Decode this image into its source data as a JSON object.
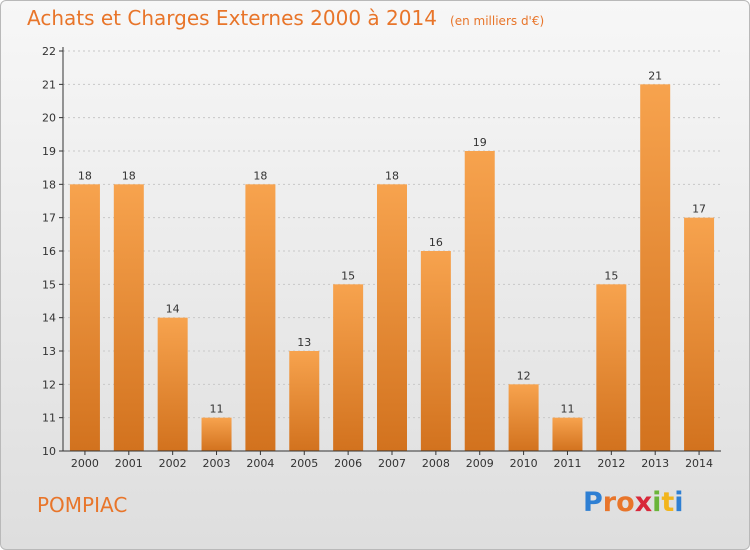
{
  "header": {
    "title": "Achats et Charges Externes 2000 à 2014",
    "subtitle": "(en milliers d'€)"
  },
  "footer": {
    "commune": "POMPIAC",
    "logo_text": "Proxiti",
    "logo_letters": [
      "P",
      "r",
      "o",
      "x",
      "i",
      "t",
      "i"
    ]
  },
  "colors": {
    "bar_light": "#f7a34e",
    "bar_dark": "#d2721e",
    "title": "#e8752a",
    "axis": "#333333",
    "grid": "#c8c8c8"
  },
  "chart_data": {
    "type": "bar",
    "title": "Achats et Charges Externes 2000 à 2014",
    "subtitle": "(en milliers d'€)",
    "categories": [
      "2000",
      "2001",
      "2002",
      "2003",
      "2004",
      "2005",
      "2006",
      "2007",
      "2008",
      "2009",
      "2010",
      "2011",
      "2012",
      "2013",
      "2014"
    ],
    "values": [
      18,
      18,
      14,
      11,
      18,
      13,
      15,
      18,
      16,
      19,
      12,
      11,
      15,
      21,
      17
    ],
    "ylim": [
      10,
      22
    ],
    "yticks": [
      10,
      11,
      12,
      13,
      14,
      15,
      16,
      17,
      18,
      19,
      20,
      21,
      22
    ],
    "grid": true,
    "show_value_labels": true
  }
}
